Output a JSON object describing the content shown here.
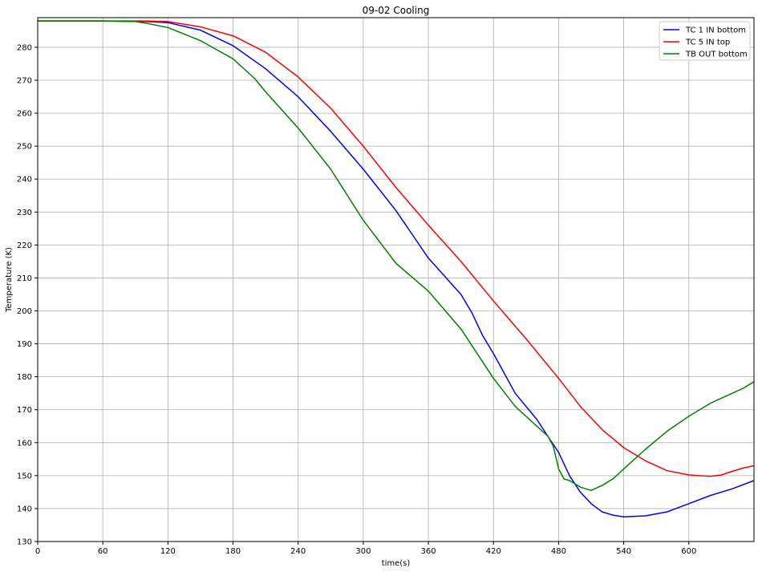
{
  "chart_data": {
    "type": "line",
    "title": "09-02 Cooling",
    "xlabel": "time(s)",
    "ylabel": "Temperature (K)",
    "xlim": [
      0,
      660
    ],
    "ylim": [
      130,
      289
    ],
    "xticks": [
      0,
      60,
      120,
      180,
      240,
      300,
      360,
      420,
      480,
      540,
      600
    ],
    "yticks": [
      130,
      140,
      150,
      160,
      170,
      180,
      190,
      200,
      210,
      220,
      230,
      240,
      250,
      260,
      270,
      280
    ],
    "grid": true,
    "legend_position": "top-right",
    "series": [
      {
        "name": "TC 1 IN bottom",
        "color": "#0000ff",
        "x": [
          0,
          60,
          100,
          120,
          150,
          180,
          210,
          240,
          270,
          300,
          330,
          360,
          390,
          400,
          410,
          420,
          440,
          460,
          470,
          480,
          490,
          500,
          510,
          520,
          530,
          540,
          560,
          580,
          600,
          620,
          640,
          660
        ],
        "y": [
          288,
          288,
          287.8,
          287.5,
          285.2,
          280.5,
          273.5,
          265,
          254.5,
          243,
          230.5,
          216,
          205,
          199.5,
          192.5,
          187,
          175,
          167,
          162,
          157,
          150,
          145,
          141.5,
          139,
          138,
          137.5,
          137.8,
          139,
          141.5,
          144,
          146,
          148.5
        ]
      },
      {
        "name": "TC 5 IN top",
        "color": "#ff0000",
        "x": [
          0,
          60,
          100,
          120,
          150,
          180,
          210,
          240,
          270,
          300,
          330,
          360,
          390,
          420,
          450,
          480,
          500,
          520,
          540,
          560,
          580,
          600,
          620,
          630,
          640,
          650,
          660
        ],
        "y": [
          288,
          288,
          288,
          287.8,
          286.2,
          283.5,
          278.5,
          271,
          261.5,
          250,
          237.5,
          226,
          215,
          203,
          191.5,
          179.5,
          171,
          164,
          158.5,
          154.5,
          151.5,
          150.2,
          149.8,
          150.2,
          151.3,
          152.3,
          153
        ]
      },
      {
        "name": "TB OUT bottom",
        "color": "#008000",
        "x": [
          0,
          60,
          90,
          100,
          120,
          150,
          180,
          200,
          210,
          240,
          270,
          300,
          330,
          360,
          390,
          420,
          440,
          460,
          470,
          475,
          480,
          485,
          490,
          500,
          510,
          520,
          530,
          540,
          560,
          580,
          600,
          620,
          640,
          650,
          660
        ],
        "y": [
          288,
          288,
          287.8,
          287.3,
          286,
          282,
          276.5,
          270.5,
          266.5,
          255.5,
          243,
          227.5,
          214.5,
          206,
          194.5,
          179.5,
          171,
          165,
          162,
          159,
          152,
          149,
          148.5,
          146.5,
          145.5,
          147,
          149,
          152,
          158,
          163.5,
          168,
          172,
          175,
          176.5,
          178.5
        ]
      }
    ]
  }
}
